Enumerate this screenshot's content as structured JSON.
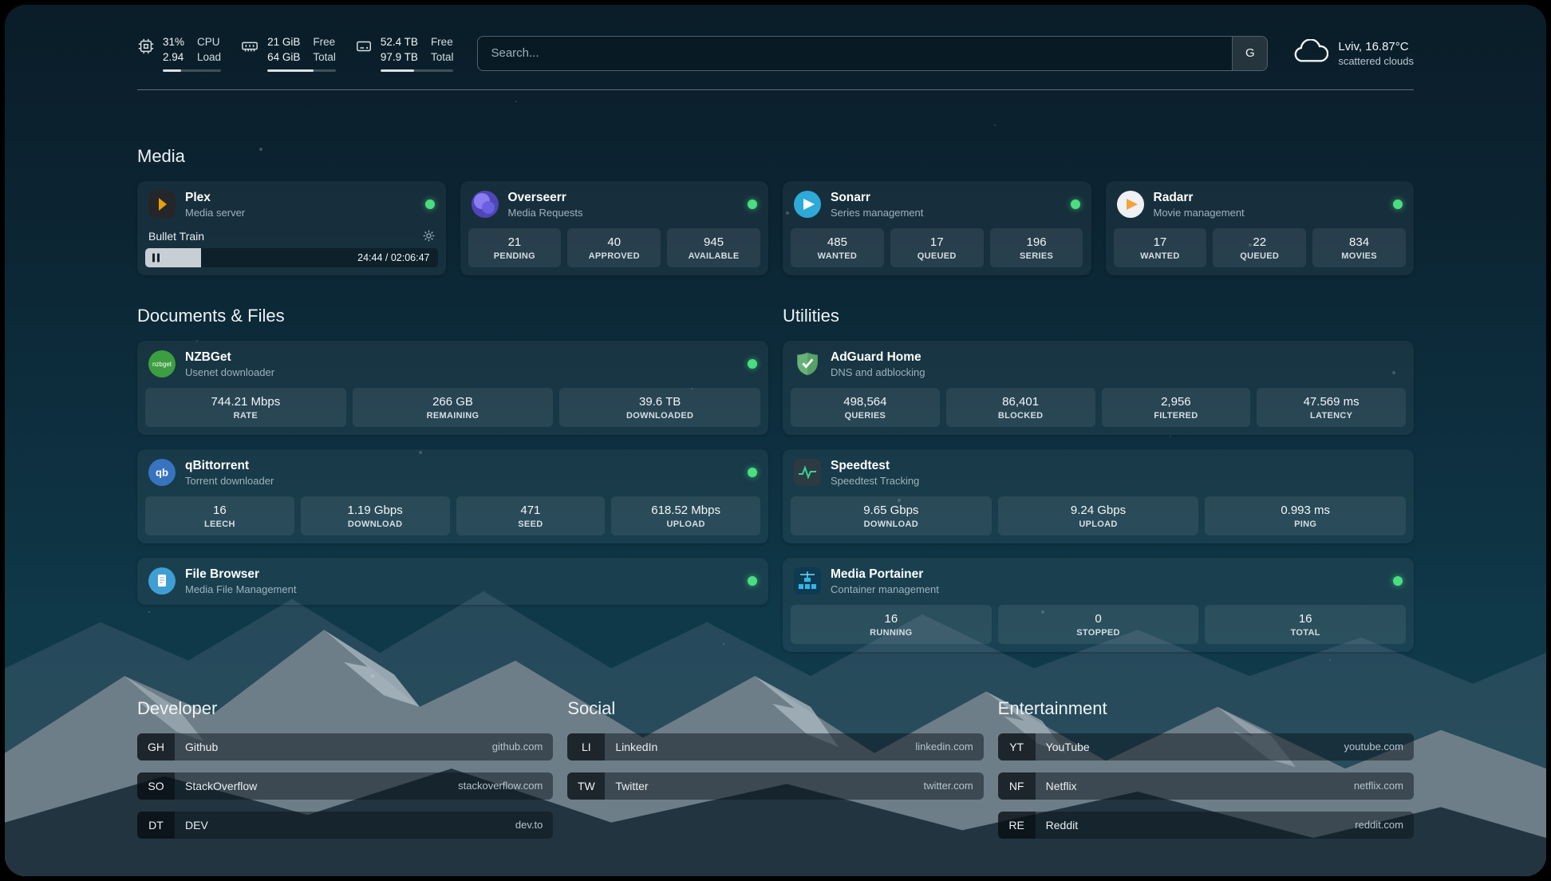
{
  "colors": {
    "status-green": "#4ade80",
    "plex-amber": "#e5a00d",
    "sonarr-blue": "#2ea9d8",
    "radarr-amber": "#f2a33c",
    "nzbget-green": "#3c9e40",
    "qbittorrent-blue": "#3873c0",
    "adguard-green": "#67b279",
    "speedtest-green": "#34d399",
    "portainer-blue": "#2fb7ea"
  },
  "icons": {
    "glyphs": {
      "nzbget": "nzbget",
      "qbittorrent": "qb"
    }
  },
  "topbar": {
    "cpu": {
      "value1": "31%",
      "label1": "CPU",
      "value2": "2.94",
      "label2": "Load",
      "bar": "31%"
    },
    "memory": {
      "value1": "21 GiB",
      "label1": "Free",
      "value2": "64 GiB",
      "label2": "Total",
      "bar": "67%"
    },
    "disk": {
      "value1": "52.4 TB",
      "label1": "Free",
      "value2": "97.9 TB",
      "label2": "Total",
      "bar": "46%"
    },
    "search": {
      "placeholder": "Search...",
      "provider": "G"
    },
    "weather": {
      "location": "Lviv, 16.87°C",
      "condition": "scattered clouds"
    }
  },
  "media": {
    "title": "Media",
    "plex": {
      "name": "Plex",
      "desc": "Media server",
      "now_playing": "Bullet Train",
      "time": "24:44 / 02:06:47",
      "progress": "19%"
    },
    "overseerr": {
      "name": "Overseerr",
      "desc": "Media Requests",
      "stats": [
        {
          "value": "21",
          "label": "PENDING"
        },
        {
          "value": "40",
          "label": "APPROVED"
        },
        {
          "value": "945",
          "label": "AVAILABLE"
        }
      ]
    },
    "sonarr": {
      "name": "Sonarr",
      "desc": "Series management",
      "stats": [
        {
          "value": "485",
          "label": "WANTED"
        },
        {
          "value": "17",
          "label": "QUEUED"
        },
        {
          "value": "196",
          "label": "SERIES"
        }
      ]
    },
    "radarr": {
      "name": "Radarr",
      "desc": "Movie management",
      "stats": [
        {
          "value": "17",
          "label": "WANTED"
        },
        {
          "value": "22",
          "label": "QUEUED"
        },
        {
          "value": "834",
          "label": "MOVIES"
        }
      ]
    }
  },
  "documents": {
    "title": "Documents & Files",
    "nzbget": {
      "name": "NZBGet",
      "desc": "Usenet downloader",
      "stats": [
        {
          "value": "744.21 Mbps",
          "label": "RATE"
        },
        {
          "value": "266 GB",
          "label": "REMAINING"
        },
        {
          "value": "39.6 TB",
          "label": "DOWNLOADED"
        }
      ]
    },
    "qbittorrent": {
      "name": "qBittorrent",
      "desc": "Torrent downloader",
      "stats": [
        {
          "value": "16",
          "label": "LEECH"
        },
        {
          "value": "1.19 Gbps",
          "label": "DOWNLOAD"
        },
        {
          "value": "471",
          "label": "SEED"
        },
        {
          "value": "618.52 Mbps",
          "label": "UPLOAD"
        }
      ]
    },
    "filebrowser": {
      "name": "File Browser",
      "desc": "Media File Management"
    }
  },
  "utilities": {
    "title": "Utilities",
    "adguard": {
      "name": "AdGuard Home",
      "desc": "DNS and adblocking",
      "stats": [
        {
          "value": "498,564",
          "label": "QUERIES"
        },
        {
          "value": "86,401",
          "label": "BLOCKED"
        },
        {
          "value": "2,956",
          "label": "FILTERED"
        },
        {
          "value": "47.569 ms",
          "label": "LATENCY"
        }
      ]
    },
    "speedtest": {
      "name": "Speedtest",
      "desc": "Speedtest Tracking",
      "stats": [
        {
          "value": "9.65 Gbps",
          "label": "DOWNLOAD"
        },
        {
          "value": "9.24 Gbps",
          "label": "UPLOAD"
        },
        {
          "value": "0.993 ms",
          "label": "PING"
        }
      ]
    },
    "portainer": {
      "name": "Media Portainer",
      "desc": "Container management",
      "stats": [
        {
          "value": "16",
          "label": "RUNNING"
        },
        {
          "value": "0",
          "label": "STOPPED"
        },
        {
          "value": "16",
          "label": "TOTAL"
        }
      ]
    }
  },
  "bookmarks": {
    "developer": {
      "title": "Developer",
      "items": [
        {
          "abbr": "GH",
          "name": "Github",
          "url": "github.com"
        },
        {
          "abbr": "SO",
          "name": "StackOverflow",
          "url": "stackoverflow.com"
        },
        {
          "abbr": "DT",
          "name": "DEV",
          "url": "dev.to"
        }
      ]
    },
    "social": {
      "title": "Social",
      "items": [
        {
          "abbr": "LI",
          "name": "LinkedIn",
          "url": "linkedin.com"
        },
        {
          "abbr": "TW",
          "name": "Twitter",
          "url": "twitter.com"
        }
      ]
    },
    "entertainment": {
      "title": "Entertainment",
      "items": [
        {
          "abbr": "YT",
          "name": "YouTube",
          "url": "youtube.com"
        },
        {
          "abbr": "NF",
          "name": "Netflix",
          "url": "netflix.com"
        },
        {
          "abbr": "RE",
          "name": "Reddit",
          "url": "reddit.com"
        }
      ]
    }
  }
}
